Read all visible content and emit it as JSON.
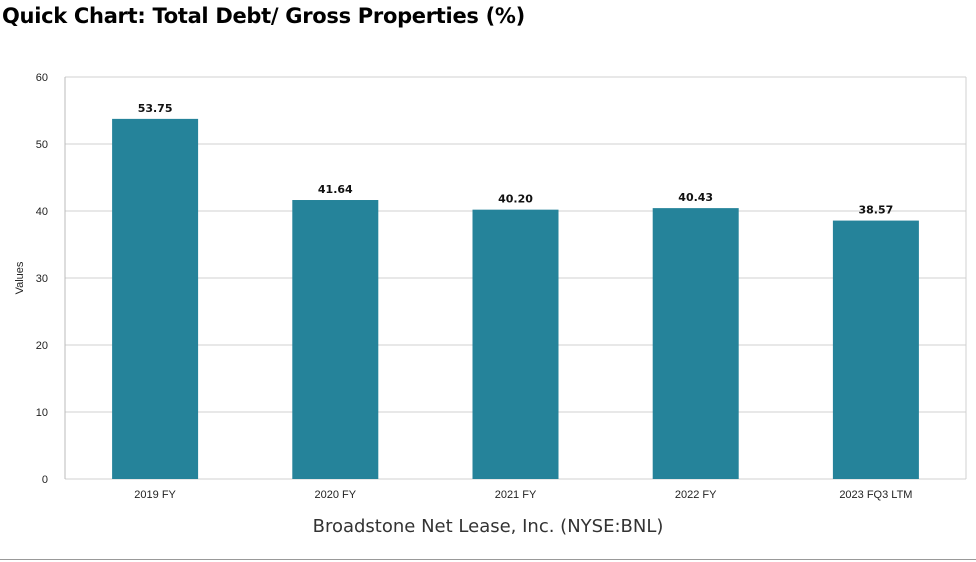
{
  "header": {
    "title": "Quick Chart: Total Debt/ Gross Properties (%)"
  },
  "footer": {
    "caption": "Broadstone Net Lease, Inc. (NYSE:BNL)"
  },
  "colors": {
    "bar": "#25839a",
    "grid": "#d0d0d0",
    "axis": "#bbbbbb"
  },
  "chart_data": {
    "type": "bar",
    "title": "Quick Chart: Total Debt/ Gross Properties (%)",
    "xlabel": "Broadstone Net Lease, Inc. (NYSE:BNL)",
    "ylabel": "Values",
    "ylim": [
      0,
      60
    ],
    "yticks": [
      0,
      10,
      20,
      30,
      40,
      50,
      60
    ],
    "grid": true,
    "categories": [
      "2019 FY",
      "2020 FY",
      "2021 FY",
      "2022 FY",
      "2023 FQ3 LTM"
    ],
    "values": [
      53.75,
      41.64,
      40.2,
      40.43,
      38.57
    ],
    "value_labels": [
      "53.75",
      "41.64",
      "40.20",
      "40.43",
      "38.57"
    ]
  }
}
